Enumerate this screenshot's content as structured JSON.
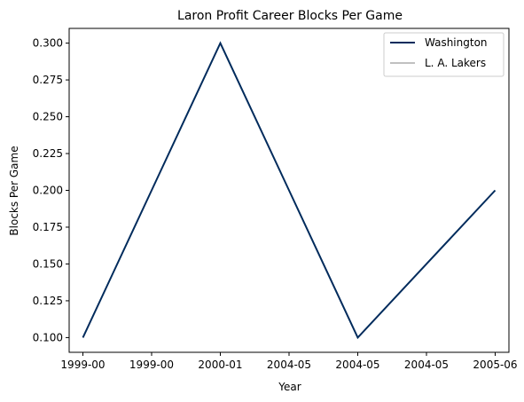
{
  "chart_data": {
    "type": "line",
    "title": "Laron Profit Career Blocks Per Game",
    "xlabel": "Year",
    "ylabel": "Blocks Per Game",
    "x_ticks": [
      "1999-00",
      "1999-00",
      "2000-01",
      "2004-05",
      "2004-05",
      "2004-05",
      "2005-06"
    ],
    "xlim": [
      -0.2,
      6.2
    ],
    "ylim": [
      0.09,
      0.31
    ],
    "y_ticks": [
      "0.100",
      "0.125",
      "0.150",
      "0.175",
      "0.200",
      "0.225",
      "0.250",
      "0.275",
      "0.300"
    ],
    "grid": false,
    "legend_position": "top-right",
    "series": [
      {
        "name": "Washington",
        "color": "#002B5C",
        "x": [
          0,
          1,
          2,
          3,
          4,
          5,
          6
        ],
        "values": [
          0.1,
          0.2,
          0.3,
          0.2,
          0.1,
          0.15,
          0.2
        ]
      },
      {
        "name": "L. A. Lakers",
        "color": "#C0C0C0",
        "x": [],
        "values": []
      }
    ]
  }
}
